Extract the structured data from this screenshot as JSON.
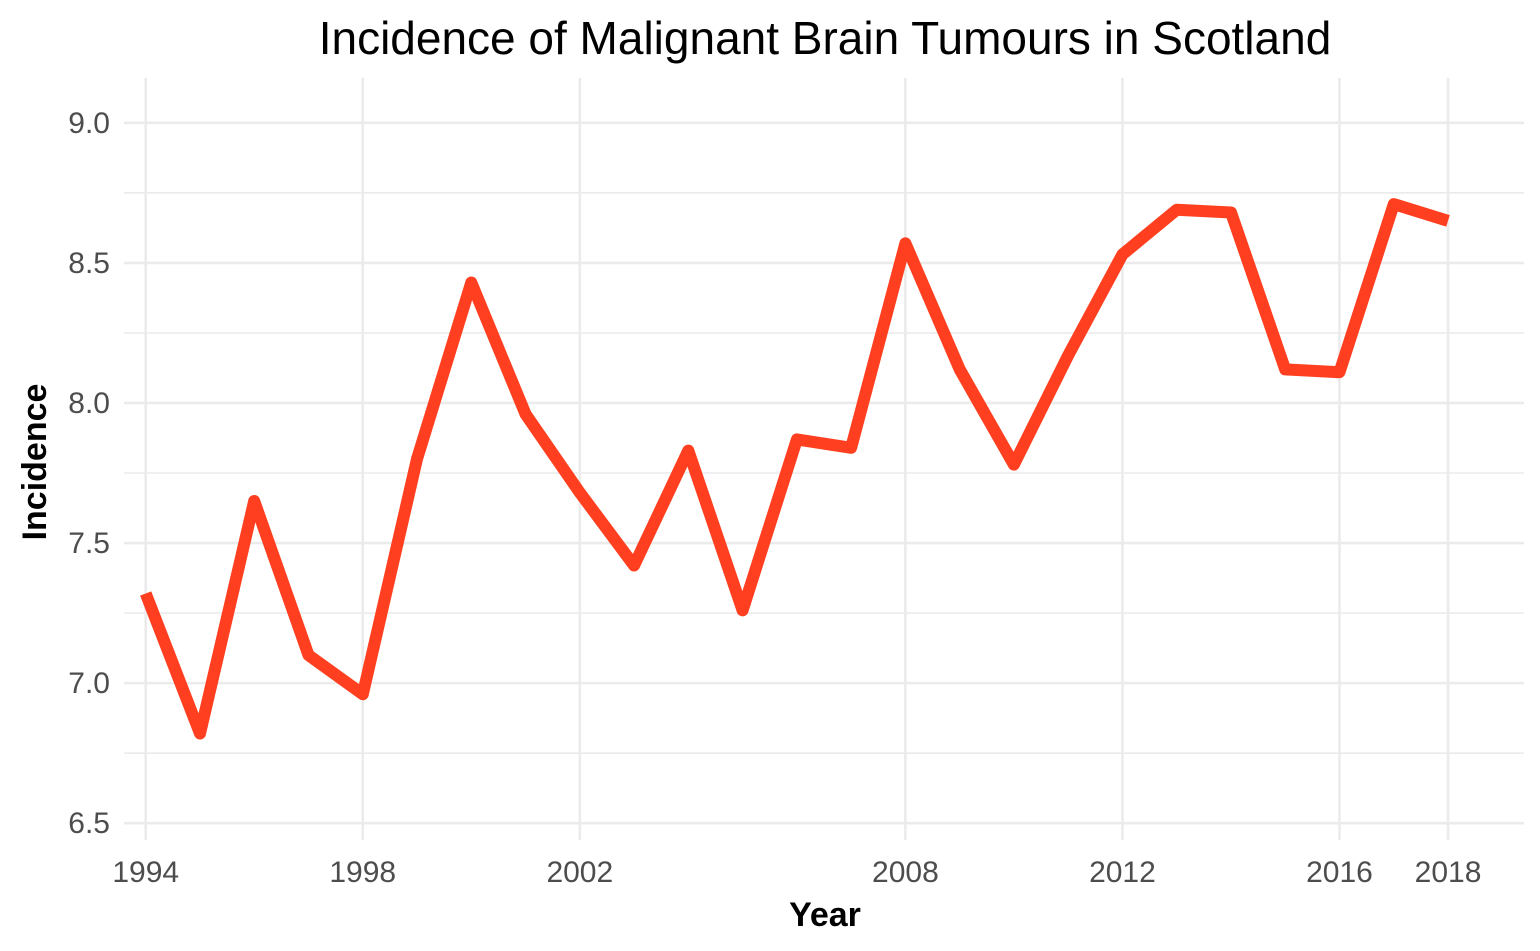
{
  "chart_data": {
    "type": "line",
    "title": "Incidence of Malignant Brain Tumours in Scotland",
    "xlabel": "Year",
    "ylabel": "Incidence",
    "xlim": [
      1993.6,
      2019.4
    ],
    "ylim": [
      6.44,
      9.16
    ],
    "x_ticks": [
      1994,
      1998,
      2002,
      2008,
      2012,
      2016,
      2018
    ],
    "x_tick_labels": [
      "1994",
      "1998",
      "2002",
      "2008",
      "2012",
      "2016",
      "2018"
    ],
    "y_ticks": [
      6.5,
      7.0,
      7.5,
      8.0,
      8.5,
      9.0
    ],
    "y_tick_labels": [
      "6.5",
      "7.0",
      "7.5",
      "8.0",
      "8.5",
      "9.0"
    ],
    "y_minor_ticks": [
      6.75,
      7.25,
      7.75,
      8.25,
      8.75
    ],
    "grid": true,
    "legend": "none",
    "series": [
      {
        "color": "#ff3f1f",
        "x": [
          1994,
          1995,
          1996,
          1997,
          1998,
          1999,
          2000,
          2001,
          2002,
          2003,
          2004,
          2005,
          2006,
          2007,
          2008,
          2009,
          2010,
          2011,
          2012,
          2013,
          2014,
          2015,
          2016,
          2017,
          2018
        ],
        "y": [
          7.32,
          6.82,
          7.65,
          7.1,
          6.96,
          7.8,
          8.43,
          7.96,
          7.68,
          7.42,
          7.83,
          7.26,
          7.87,
          7.84,
          8.57,
          8.12,
          7.78,
          8.17,
          8.53,
          8.69,
          8.68,
          8.12,
          8.11,
          8.71,
          8.65
        ]
      }
    ]
  }
}
